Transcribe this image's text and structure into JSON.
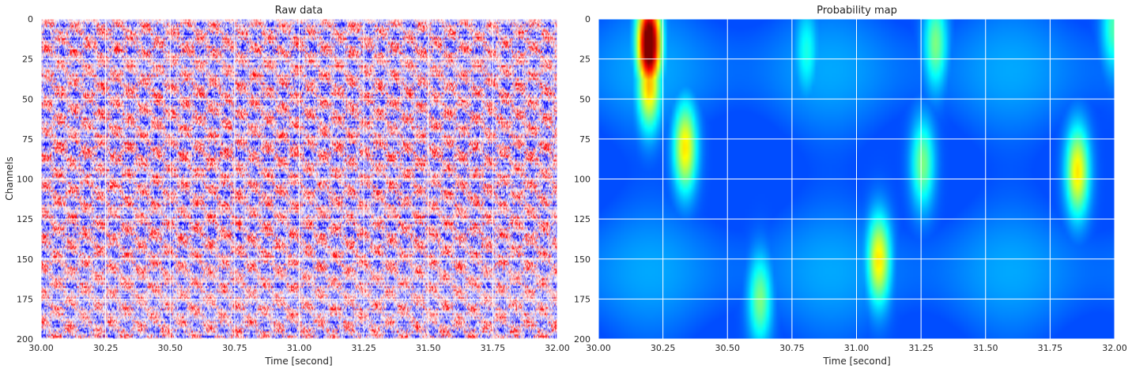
{
  "chart_data": [
    {
      "type": "heatmap",
      "title": "Raw data",
      "xlabel": "Time [second]",
      "ylabel": "Channels",
      "xlim": [
        30.0,
        32.0
      ],
      "ylim": [
        200,
        0
      ],
      "xticks": [
        "30.00",
        "30.25",
        "30.50",
        "30.75",
        "31.00",
        "31.25",
        "31.50",
        "31.75",
        "32.00"
      ],
      "yticks": [
        "0",
        "25",
        "50",
        "75",
        "100",
        "125",
        "150",
        "175",
        "200"
      ],
      "colormap": "seismic",
      "grid": true,
      "colors": {
        "negative": "#0000ff",
        "positive": "#ff0000",
        "zero": "#ffffff"
      }
    },
    {
      "type": "heatmap",
      "title": "Probability map",
      "xlabel": "Time [second]",
      "ylabel": "",
      "xlim": [
        30.0,
        32.0
      ],
      "ylim": [
        200,
        0
      ],
      "xticks": [
        "30.00",
        "30.25",
        "30.50",
        "30.75",
        "31.00",
        "31.25",
        "31.50",
        "31.75",
        "32.00"
      ],
      "yticks": [
        "0",
        "25",
        "50",
        "75",
        "100",
        "125",
        "150",
        "175",
        "200"
      ],
      "colormap": "jet",
      "grid": true,
      "hotspots": [
        {
          "time": 30.19,
          "channel": 15,
          "peak": 0.95
        },
        {
          "time": 30.19,
          "channel": 40,
          "peak": 0.5
        },
        {
          "time": 30.33,
          "channel": 80,
          "peak": 0.45
        },
        {
          "time": 30.62,
          "channel": 175,
          "peak": 0.3
        },
        {
          "time": 31.08,
          "channel": 150,
          "peak": 0.45
        },
        {
          "time": 31.25,
          "channel": 90,
          "peak": 0.3
        },
        {
          "time": 31.3,
          "channel": 15,
          "peak": 0.3
        },
        {
          "time": 31.85,
          "channel": 95,
          "peak": 0.45
        },
        {
          "time": 30.8,
          "channel": 20,
          "peak": 0.2
        },
        {
          "time": 31.99,
          "channel": 5,
          "peak": 0.25
        }
      ]
    }
  ]
}
